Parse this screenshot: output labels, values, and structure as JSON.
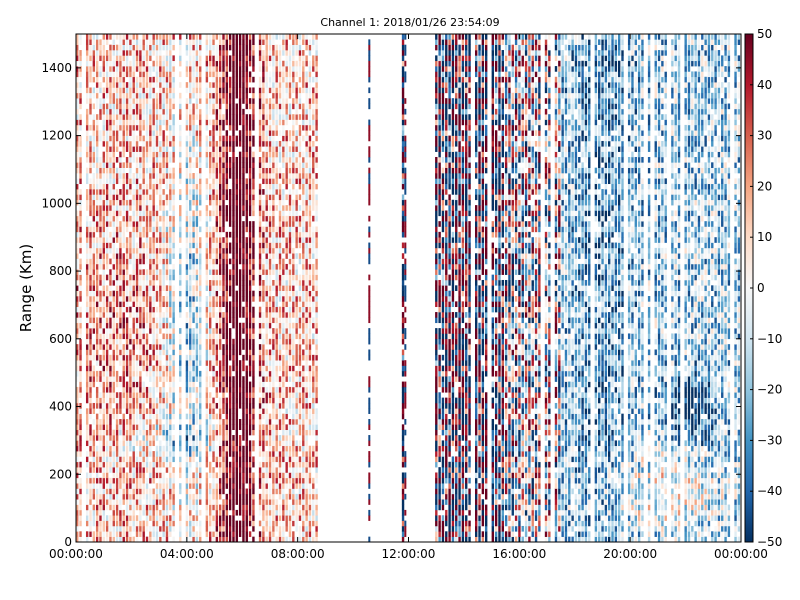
{
  "chart_data": {
    "type": "heatmap",
    "title": "Channel 1: 2018/01/26 23:54:09",
    "xlabel": "",
    "ylabel": "Range (Km)",
    "x_ticks": [
      "00:00:00",
      "04:00:00",
      "08:00:00",
      "12:00:00",
      "16:00:00",
      "20:00:00",
      "00:00:00"
    ],
    "x_tick_hours": [
      0,
      4,
      8,
      12,
      16,
      20,
      24
    ],
    "xlim_hours": [
      0,
      24
    ],
    "y_ticks": [
      0,
      200,
      400,
      600,
      800,
      1000,
      1200,
      1400
    ],
    "ylim": [
      0,
      1500
    ],
    "colorbar": {
      "colormap": "RdBu_r",
      "range": [
        -50,
        50
      ],
      "ticks": [
        50,
        40,
        30,
        20,
        10,
        0,
        -10,
        -20,
        -30,
        -40,
        -50
      ],
      "tick_labels": [
        "50",
        "40",
        "30",
        "20",
        "10",
        "0",
        "−10",
        "−20",
        "−30",
        "−40",
        "−50"
      ]
    },
    "grid": false,
    "data_gaps_hours": [
      [
        8.8,
        10.5
      ],
      [
        10.6,
        11.8
      ],
      [
        11.9,
        13.0
      ]
    ],
    "features": [
      {
        "region": "0-8h, range 0-1500",
        "description": "mostly positive values (red)"
      },
      {
        "region": "~5.5-6.5h, all ranges",
        "description": "strong positive band (dark red)"
      },
      {
        "region": "~4h, range 300-1100",
        "description": "negative streak (blue)"
      },
      {
        "region": "13-17h, all ranges",
        "description": "alternating saturated +/- values"
      },
      {
        "region": "18-24h, all ranges",
        "description": "mostly negative values (blue)"
      },
      {
        "region": "~22h, range 350-450",
        "description": "strong negative blob (dark blue)"
      }
    ]
  }
}
